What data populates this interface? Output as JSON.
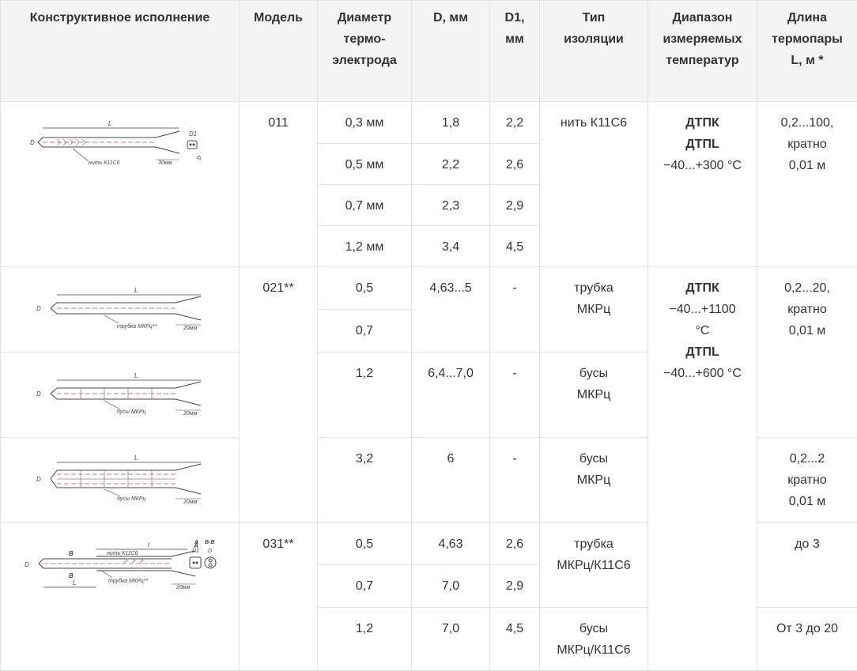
{
  "headers": {
    "design": "Конструктивное исполнение",
    "model": "Модель",
    "diameter": "Диаметр\nтермо-\nэлектрода",
    "d": "D, мм",
    "d1": "D1,\nмм",
    "insulation": "Тип\nизоляции",
    "range": "Диапазон\nизмеряемых\nтемператур",
    "length": "Длина\nтермопары\nL, м *"
  },
  "drawings": {
    "d011": {
      "L": "L",
      "D": "D",
      "D1": "D1",
      "label": "нить К11С6",
      "tail": "30мм"
    },
    "d021a": {
      "L": "L",
      "D": "D",
      "label": "трубка МКРц**",
      "tail": "20мм"
    },
    "d021b": {
      "L": "L",
      "D": "D",
      "label": "бусы МКРц",
      "tail": "20мм"
    },
    "d021c": {
      "L": "L",
      "D": "D",
      "label": "бусы МКРц",
      "tail": "20мм"
    },
    "d031": {
      "L": "L",
      "l": "l",
      "D": "D",
      "D1": "D1",
      "B": "B",
      "A": "A",
      "secA": "A",
      "secB": "B-B",
      "label1": "нить К11С6",
      "label2": "трубка МКРц**",
      "tail": "20мм"
    }
  },
  "g011": {
    "model": "011",
    "rows": [
      {
        "dia": "0,3 мм",
        "d": "1,8",
        "d1": "2,2"
      },
      {
        "dia": "0,5 мм",
        "d": "2,2",
        "d1": "2,6"
      },
      {
        "dia": "0,7 мм",
        "d": "2,3",
        "d1": "2,9"
      },
      {
        "dia": "1,2 мм",
        "d": "3,4",
        "d1": "4,5"
      }
    ],
    "insulation": "нить К11С6",
    "range_name1": "ДТПК",
    "range_name2": "ДТПL",
    "range_value": "−40...+300 °С",
    "length": "0,2...100,\nкратно\n0,01 м"
  },
  "g021": {
    "model": "021**",
    "a": {
      "dia1": "0,5",
      "dia2": "0,7",
      "d": "4,63...5",
      "d1": "-",
      "insulation": "трубка\nМКРц"
    },
    "b": {
      "dia": "1,2",
      "d": "6,4...7,0",
      "d1": "-",
      "insulation": "бусы\nМКРц"
    },
    "c": {
      "dia": "3,2",
      "d": "6",
      "d1": "-",
      "insulation": "бусы\nМКРц"
    },
    "length_ab": "0,2...20,\nкратно\n0,01 м",
    "length_c": "0,2...2\nкратно\n0,01 м"
  },
  "range_big": {
    "name1": "ДТПК",
    "value1": "−40...+1100\n°С",
    "name2": "ДТПL",
    "value2": "−40...+600 °С"
  },
  "g031": {
    "model": "031**",
    "rows": [
      {
        "dia": "0,5",
        "d": "4,63",
        "d1": "2,6"
      },
      {
        "dia": "0,7",
        "d": "7,0",
        "d1": "2,9"
      },
      {
        "dia": "1,2",
        "d": "7,0",
        "d1": "4,5"
      }
    ],
    "insulation_a": "трубка\nМКРц/К11С6",
    "insulation_b": "бусы\nМКРц/К11С6",
    "length_a": "до 3",
    "length_b": "От 3 до 20"
  }
}
